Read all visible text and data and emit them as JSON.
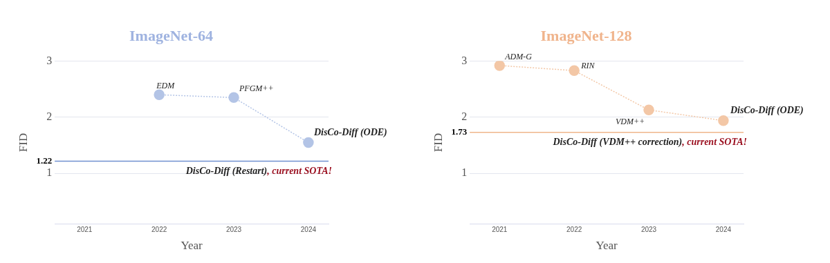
{
  "chart_data": [
    {
      "type": "line",
      "title": "ImageNet-64",
      "xlabel": "Year",
      "ylabel": "FID",
      "xlim": [
        2020.6,
        2024.27
      ],
      "xticks": [
        2021,
        2022,
        2023,
        2024
      ],
      "ylim": [
        0.1,
        3
      ],
      "yticks": [
        1,
        {
          "value": 1.22,
          "label": "1.22"
        },
        2,
        3
      ],
      "grid": "y",
      "marker": "circle",
      "line_style": "dotted",
      "series": [
        {
          "color": "#b3c4e6",
          "x": [
            2022,
            2023,
            2024
          ],
          "values": [
            2.4,
            2.35,
            1.55
          ]
        }
      ],
      "ref_lines": [
        {
          "axis": "y",
          "value": 1.22,
          "label": "DisCo-Diff (Restart)",
          "color": "#7090d0"
        }
      ],
      "annotations": [
        {
          "text": "EDM",
          "x": 2022,
          "y": 2.4
        },
        {
          "text": "PFGM++",
          "x": 2023,
          "y": 2.35
        },
        {
          "text": "DisCo-Diff (ODE)",
          "x": 2024,
          "y": 1.55
        },
        ", current SOTA!"
      ]
    },
    {
      "type": "line",
      "title": "ImageNet-128",
      "xlabel": "Year",
      "ylabel": "FID",
      "xlim": [
        2020.6,
        2024.27
      ],
      "xticks": [
        2021,
        2022,
        2023,
        2024
      ],
      "ylim": [
        0.1,
        3
      ],
      "yticks": [
        1,
        {
          "value": 1.73,
          "label": "1.73"
        },
        2,
        3
      ],
      "grid": "y",
      "marker": "circle",
      "line_style": "dotted",
      "series": [
        {
          "color": "#f3c7a6",
          "x": [
            2021,
            2022,
            2023,
            2024
          ],
          "values": [
            2.92,
            2.83,
            2.13,
            1.94
          ]
        }
      ],
      "ref_lines": [
        {
          "axis": "y",
          "value": 1.73,
          "label": "DisCo-Diff (VDM++ correction)",
          "color": "#efb58a"
        }
      ],
      "annotations": [
        {
          "text": "ADM-G",
          "x": 2021,
          "y": 2.92
        },
        {
          "text": "RIN",
          "x": 2022,
          "y": 2.83
        },
        {
          "text": "VDM++",
          "x": 2023,
          "y": 2.13
        },
        {
          "text": "DisCo-Diff (ODE)",
          "x": 2024,
          "y": 1.94
        },
        ", current SOTA!"
      ]
    }
  ]
}
